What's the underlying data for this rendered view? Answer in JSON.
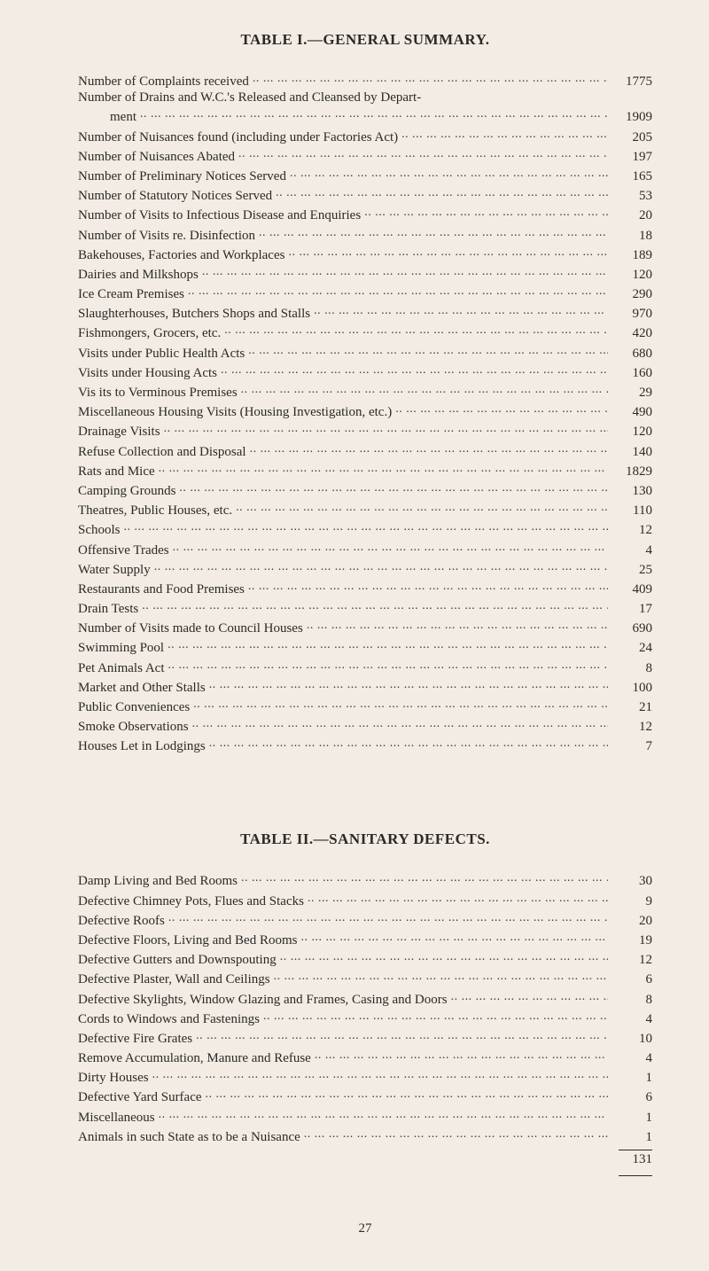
{
  "page_number": "27",
  "table1": {
    "title": "TABLE I.—GENERAL SUMMARY.",
    "rows": [
      {
        "label": "Number of Complaints received",
        "value": "1775",
        "indent": false
      },
      {
        "label": "Number of Drains and W.C.'s Released and Cleansed by Depart-",
        "value": "",
        "indent": false,
        "no_dots": true
      },
      {
        "label": "ment",
        "value": "1909",
        "indent": true
      },
      {
        "label": "Number of Nuisances found (including under Factories Act)",
        "value": "205",
        "indent": false
      },
      {
        "label": "Number of Nuisances Abated",
        "value": "197",
        "indent": false
      },
      {
        "label": "Number of Preliminary Notices Served",
        "value": "165",
        "indent": false
      },
      {
        "label": "Number of Statutory Notices Served",
        "value": "53",
        "indent": false
      },
      {
        "label": "Number of Visits to Infectious Disease and Enquiries",
        "value": "20",
        "indent": false
      },
      {
        "label": "Number of Visits re. Disinfection",
        "value": "18",
        "indent": false
      },
      {
        "label": "Bakehouses, Factories and Workplaces",
        "value": "189",
        "indent": false
      },
      {
        "label": "Dairies and Milkshops",
        "value": "120",
        "indent": false
      },
      {
        "label": "Ice Cream Premises",
        "value": "290",
        "indent": false
      },
      {
        "label": "Slaughterhouses, Butchers Shops and Stalls",
        "value": "970",
        "indent": false
      },
      {
        "label": "Fishmongers, Grocers, etc.",
        "value": "420",
        "indent": false
      },
      {
        "label": "Visits under Public Health Acts",
        "value": "680",
        "indent": false
      },
      {
        "label": "Visits under Housing Acts",
        "value": "160",
        "indent": false
      },
      {
        "label": "Vis its to Verminous Premises",
        "value": "29",
        "indent": false
      },
      {
        "label": "Miscellaneous Housing Visits (Housing Investigation, etc.)",
        "value": "490",
        "indent": false
      },
      {
        "label": "Drainage Visits",
        "value": "120",
        "indent": false
      },
      {
        "label": "Refuse Collection and Disposal",
        "value": "140",
        "indent": false
      },
      {
        "label": "Rats and Mice",
        "value": "1829",
        "indent": false
      },
      {
        "label": "Camping Grounds",
        "value": "130",
        "indent": false
      },
      {
        "label": "Theatres, Public Houses, etc.",
        "value": "110",
        "indent": false
      },
      {
        "label": "Schools",
        "value": "12",
        "indent": false
      },
      {
        "label": "Offensive Trades",
        "value": "4",
        "indent": false
      },
      {
        "label": "Water Supply",
        "value": "25",
        "indent": false
      },
      {
        "label": "Restaurants and Food Premises",
        "value": "409",
        "indent": false
      },
      {
        "label": "Drain Tests",
        "value": "17",
        "indent": false
      },
      {
        "label": "Number of Visits made to Council Houses",
        "value": "690",
        "indent": false
      },
      {
        "label": "Swimming Pool",
        "value": "24",
        "indent": false
      },
      {
        "label": "Pet Animals Act",
        "value": "8",
        "indent": false
      },
      {
        "label": "Market and Other Stalls",
        "value": "100",
        "indent": false
      },
      {
        "label": "Public Conveniences",
        "value": "21",
        "indent": false
      },
      {
        "label": "Smoke Observations",
        "value": "12",
        "indent": false
      },
      {
        "label": "Houses Let in Lodgings",
        "value": "7",
        "indent": false
      }
    ]
  },
  "table2": {
    "title": "TABLE II.—SANITARY DEFECTS.",
    "rows": [
      {
        "label": "Damp Living and Bed Rooms",
        "value": "30"
      },
      {
        "label": "Defective Chimney Pots, Flues and Stacks",
        "value": "9"
      },
      {
        "label": "Defective Roofs",
        "value": "20"
      },
      {
        "label": "Defective Floors, Living and Bed Rooms",
        "value": "19"
      },
      {
        "label": "Defective Gutters and Downspouting",
        "value": "12"
      },
      {
        "label": "Defective Plaster, Wall and Ceilings",
        "value": "6"
      },
      {
        "label": "Defective Skylights, Window Glazing and Frames, Casing and Doors",
        "value": "8"
      },
      {
        "label": "Cords to Windows and Fastenings",
        "value": "4"
      },
      {
        "label": "Defective Fire Grates",
        "value": "10"
      },
      {
        "label": "Remove Accumulation, Manure and Refuse",
        "value": "4"
      },
      {
        "label": "Dirty Houses",
        "value": "1"
      },
      {
        "label": "Defective Yard Surface",
        "value": "6"
      },
      {
        "label": "Miscellaneous",
        "value": "1"
      },
      {
        "label": "Animals in such State as to be a Nuisance",
        "value": "1"
      }
    ],
    "total": "131"
  }
}
